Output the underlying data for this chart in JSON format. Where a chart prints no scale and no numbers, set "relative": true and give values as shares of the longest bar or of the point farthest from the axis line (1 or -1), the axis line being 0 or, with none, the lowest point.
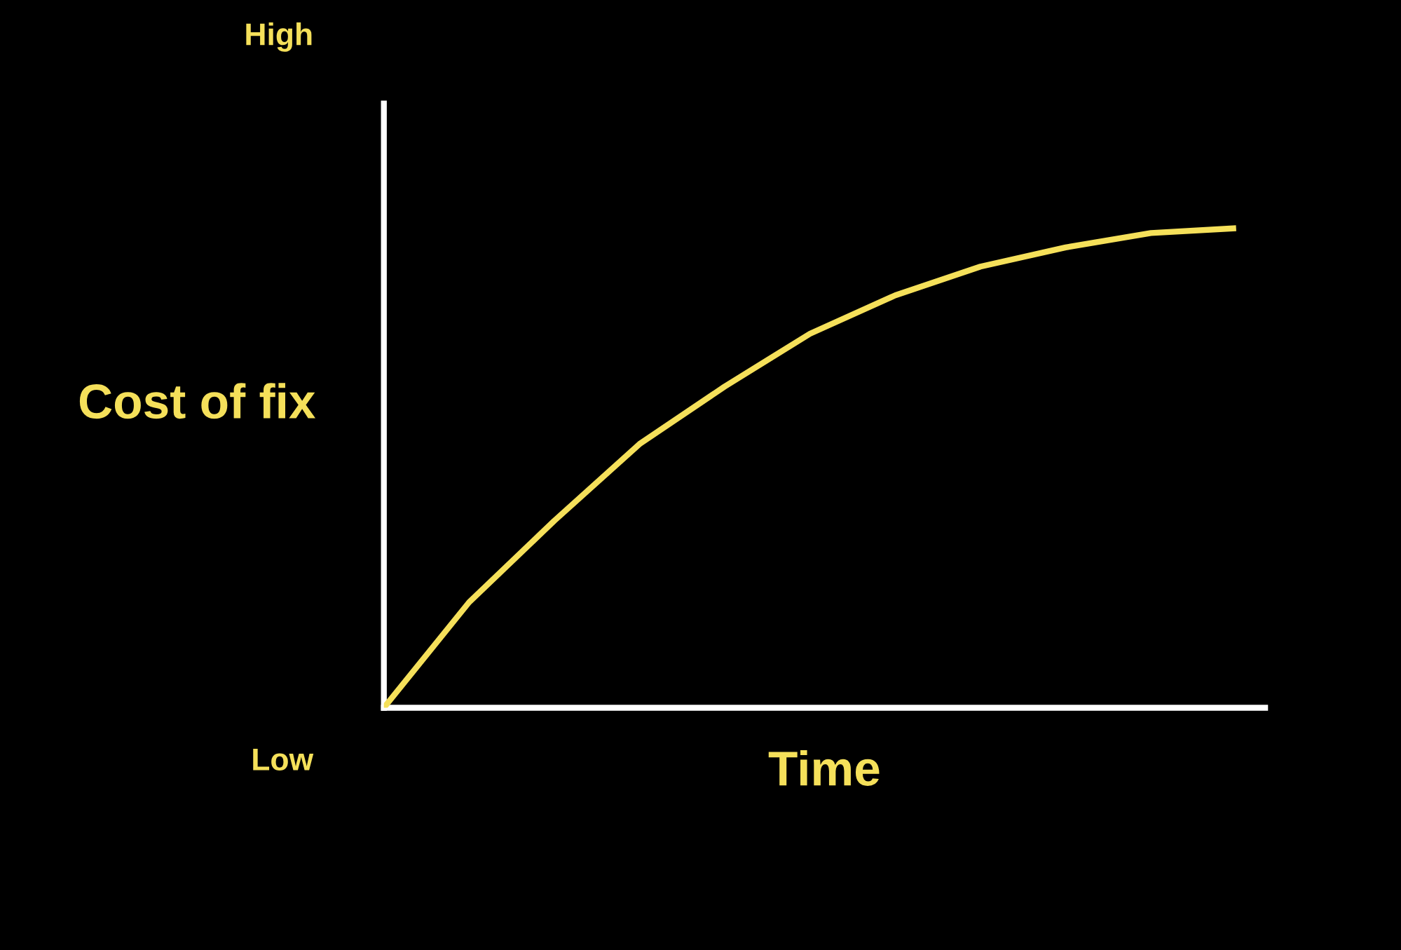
{
  "chart_data": {
    "type": "line",
    "relative": true,
    "xlabel": "Time",
    "ylabel": "Cost of fix",
    "annotations": [
      "High",
      "Low"
    ],
    "categories": [
      null,
      null,
      null,
      null,
      null,
      null,
      null,
      null,
      null,
      null,
      null
    ],
    "series": [
      {
        "color": "#f5e05a",
        "values": [
          0,
          0.22,
          0.39,
          0.55,
          0.67,
          0.78,
          0.86,
          0.92,
          0.96,
          0.99,
          1
        ]
      }
    ],
    "grid": false,
    "legend": false,
    "marker": "none",
    "line_style": "solid"
  }
}
